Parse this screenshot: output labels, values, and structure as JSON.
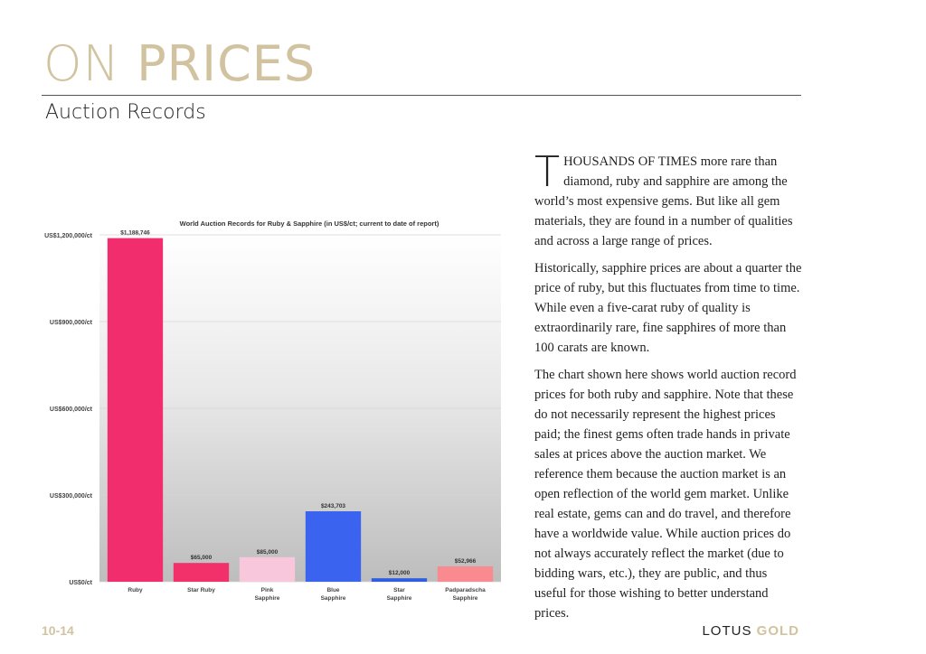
{
  "header": {
    "title_light": "ON",
    "title_bold": "PRICES",
    "subtitle": "Auction Records"
  },
  "article": {
    "dropcap": "T",
    "p1_lead": "HOUSANDS OF TIMES",
    "p1_rest": " more rare than diamond, ruby and sapphire are among the world’s most expensive gems. But like all gem materials, they are found in a number of qualities and across a large range of prices.",
    "p2": "Historically, sapphire prices are about a quarter the price of ruby, but this fluctuates from time to time. While even a five-carat ruby of quality is extraordinarily rare, fine sapphires of more than 100 carats are known.",
    "p3": "The chart shown here shows world auction record prices for both ruby and sapphire. Note that these do not necessarily represent the highest prices paid; the finest gems often trade hands in private sales at prices above the auction market. We reference them because the auction market is an open reflection of the world gem market. Unlike real estate, gems can and do travel, and therefore have a worldwide value. While auction prices do not always accurately reflect the market (due to bidding wars, etc.), they are public, and thus useful for those wishing to better understand prices."
  },
  "footer": {
    "page": "10-14",
    "brand_a": "LOTUS",
    "brand_b": "GOLD"
  },
  "colors": {
    "gold": "#d2c3a0"
  },
  "chart_data": {
    "type": "bar",
    "title": "World Auction Records for Ruby & Sapphire (in US$/ct; current to date of report)",
    "categories": [
      "Ruby",
      "Star Ruby",
      "Pink Sapphire",
      "Blue Sapphire",
      "Star Sapphire",
      "Padparadscha Sapphire"
    ],
    "values": [
      1188746,
      65000,
      85000,
      243703,
      12000,
      52966
    ],
    "value_labels": [
      "$1,188,746",
      "$65,000",
      "$85,000",
      "$243,703",
      "$12,000",
      "$52,966"
    ],
    "bar_colors": [
      "#f22d6e",
      "#f2306a",
      "#f9c7dc",
      "#3a63f0",
      "#2f5fe0",
      "#f98a8f"
    ],
    "yticks": [
      0,
      300000,
      600000,
      900000,
      1200000
    ],
    "ytick_labels": [
      "US$0/ct",
      "US$300,000/ct",
      "US$600,000/ct",
      "US$900,000/ct",
      "US$1,200,000/ct"
    ],
    "ylim": [
      0,
      1200000
    ],
    "grid": true,
    "xlabel": "",
    "ylabel": ""
  }
}
